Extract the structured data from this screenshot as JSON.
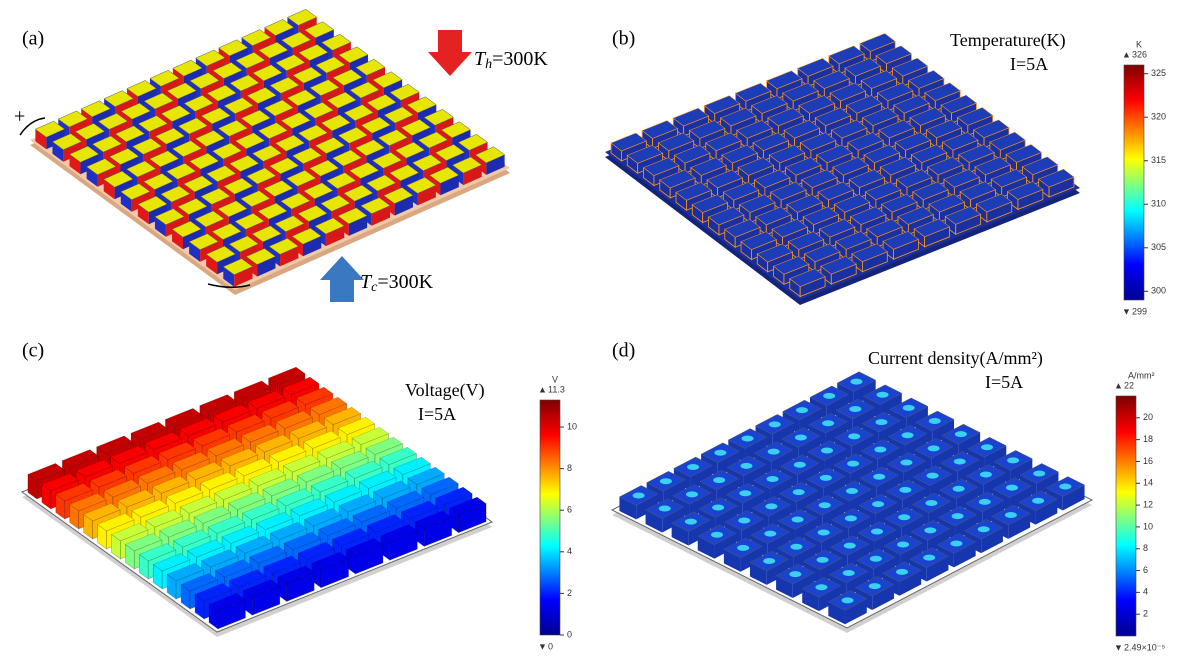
{
  "panels": [
    {
      "label": "(a)",
      "plus": "+",
      "hot": {
        "symbol": "T",
        "subscript": "h",
        "text": "=300K"
      },
      "cold": {
        "symbol": "T",
        "subscript": "c",
        "text": "=300K"
      }
    },
    {
      "label": "(b)",
      "title": "Temperature(K)",
      "current": "I=5A",
      "colorbar": {
        "unit": "K",
        "max": 326,
        "min": 299,
        "ticks": [
          300,
          305,
          310,
          315,
          320,
          325
        ]
      }
    },
    {
      "label": "(c)",
      "title": "Voltage(V)",
      "current": "I=5A",
      "colorbar": {
        "unit": "V",
        "max": 11.3,
        "min": 0,
        "ticks": [
          0,
          2,
          4,
          6,
          8,
          10
        ]
      }
    },
    {
      "label": "(d)",
      "title": "Current density(A/mm²)",
      "current": "I=5A",
      "colorbar": {
        "unit": "A/mm²",
        "max": 22,
        "min": {
          "value": 2.49e-05,
          "label": "2.49×10⁻⁵"
        },
        "ticks": [
          2,
          4,
          6,
          8,
          10,
          12,
          14,
          16,
          18,
          20
        ]
      }
    }
  ]
}
